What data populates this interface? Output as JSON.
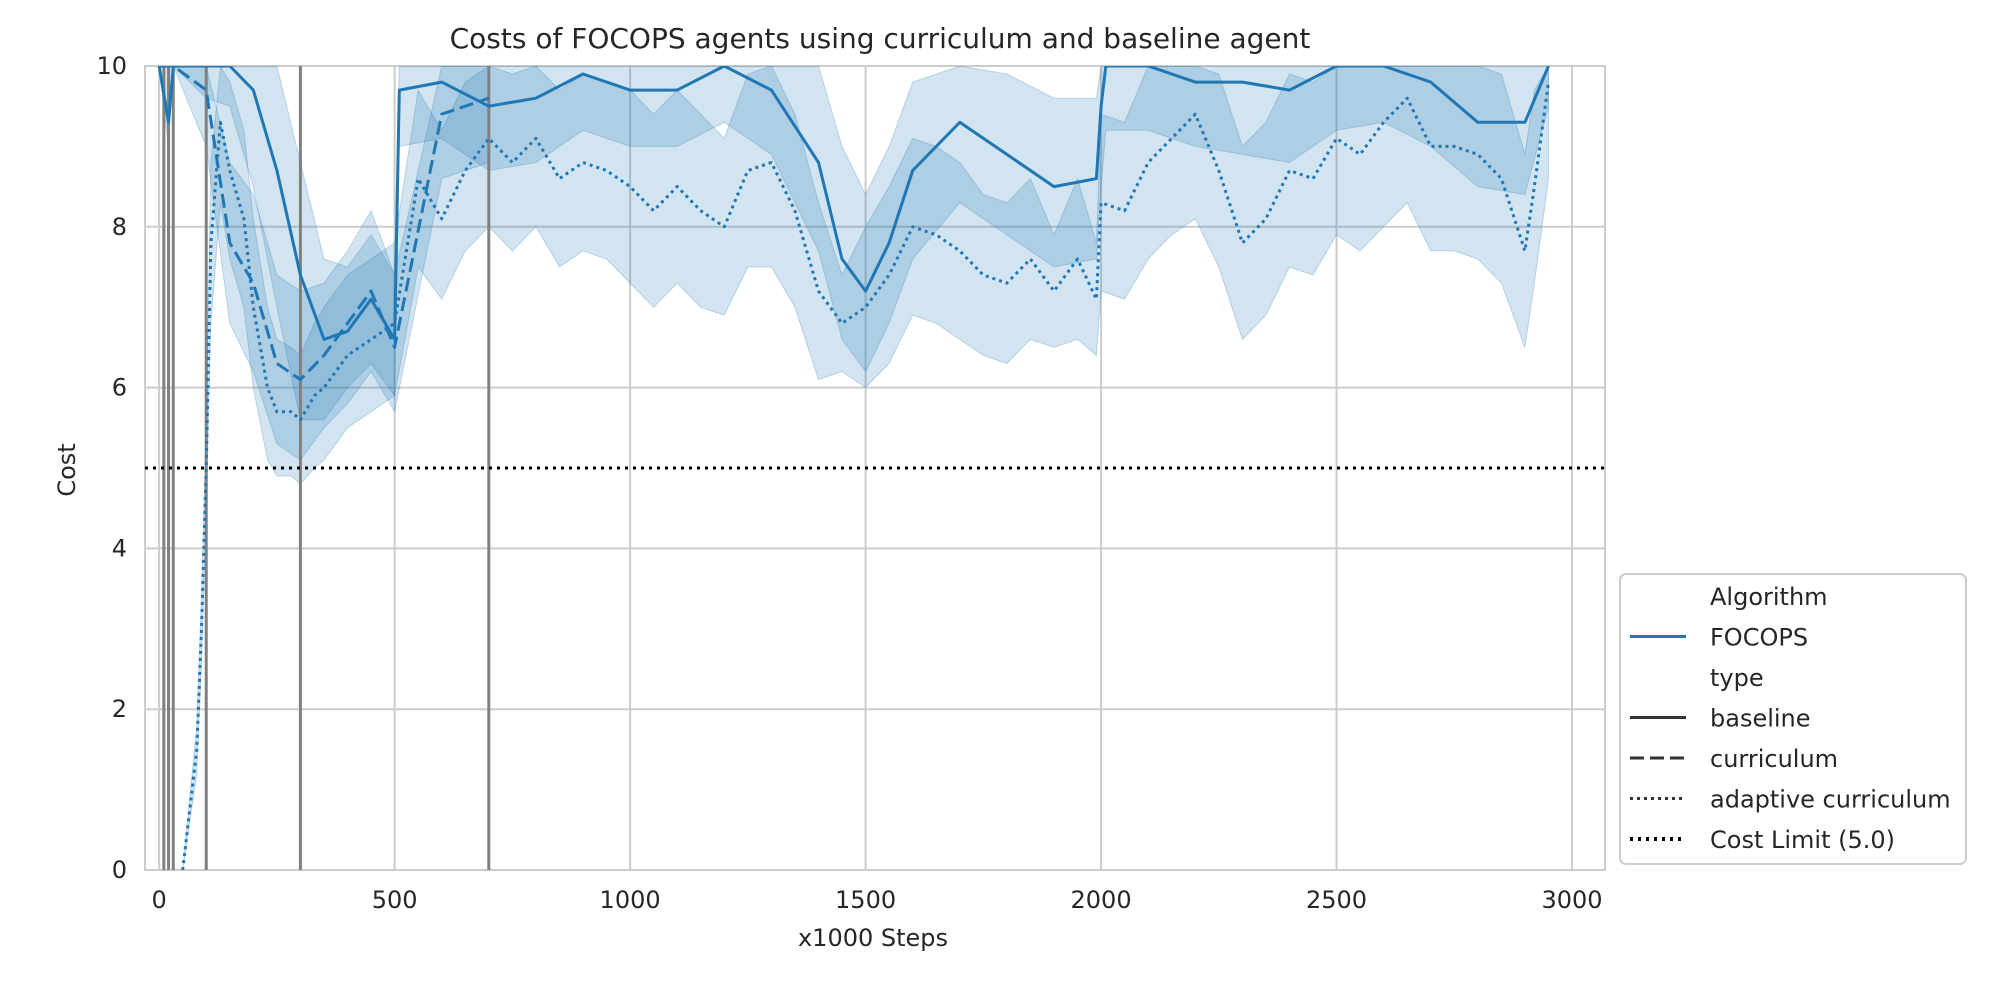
{
  "chart_data": {
    "type": "line",
    "title": "Costs of FOCOPS agents using curriculum and baseline agent",
    "xlabel": "x1000 Steps",
    "ylabel": "Cost",
    "xlim": [
      -30,
      3070
    ],
    "ylim": [
      0,
      10
    ],
    "xticks": [
      0,
      500,
      1000,
      1500,
      2000,
      2500,
      3000
    ],
    "yticks": [
      0,
      2,
      4,
      6,
      8,
      10
    ],
    "grid": true,
    "legend_position": "lower-right outside",
    "colors": {
      "series": "#1f77b4",
      "band": "#1f77b4",
      "vlines": "#808080",
      "limit": "#000000",
      "grid": "#cccccc"
    },
    "vlines": [
      10,
      20,
      30,
      100,
      300,
      700
    ],
    "cost_limit": 5.0,
    "legend": [
      {
        "label": "Algorithm",
        "kind": "header"
      },
      {
        "label": "FOCOPS",
        "kind": "line",
        "style": "solid",
        "color": "#1f77b4"
      },
      {
        "label": "type",
        "kind": "header"
      },
      {
        "label": "baseline",
        "kind": "line",
        "style": "solid",
        "color": "#333333"
      },
      {
        "label": "curriculum",
        "kind": "line",
        "style": "dashed",
        "color": "#333333"
      },
      {
        "label": "adaptive curriculum",
        "kind": "line",
        "style": "dotted",
        "color": "#333333"
      },
      {
        "label": "Cost Limit (5.0)",
        "kind": "line",
        "style": "dotted-bold",
        "color": "#000000"
      }
    ],
    "series": [
      {
        "name": "baseline",
        "style": "solid",
        "x": [
          0,
          20,
          30,
          100,
          150,
          200,
          250,
          300,
          350,
          400,
          450,
          500,
          510,
          600,
          700,
          800,
          900,
          1000,
          1100,
          1200,
          1300,
          1400,
          1450,
          1500,
          1550,
          1600,
          1700,
          1800,
          1900,
          1990,
          2000,
          2010,
          2100,
          2200,
          2300,
          2400,
          2500,
          2600,
          2700,
          2800,
          2900,
          2950
        ],
        "y": [
          10,
          9.3,
          10,
          10,
          10,
          9.7,
          8.7,
          7.4,
          6.6,
          6.7,
          7.1,
          6.6,
          9.7,
          9.8,
          9.5,
          9.6,
          9.9,
          9.7,
          9.7,
          10,
          9.7,
          8.8,
          7.6,
          7.2,
          7.8,
          8.7,
          9.3,
          8.9,
          8.5,
          8.6,
          9.5,
          10,
          10,
          9.8,
          9.8,
          9.7,
          10,
          10,
          9.8,
          9.3,
          9.3,
          10
        ],
        "lower": [
          10,
          9,
          10,
          9.6,
          9.5,
          8.5,
          7,
          5.6,
          5.6,
          6,
          6.3,
          5.9,
          9,
          9.1,
          8.7,
          8.8,
          9.2,
          9,
          9,
          9.3,
          8.9,
          7.7,
          6.6,
          6.2,
          6.8,
          7.6,
          8.3,
          7.9,
          7.5,
          7.6,
          8.5,
          9.2,
          9.2,
          9,
          8.9,
          8.8,
          9.2,
          9.3,
          9,
          8.5,
          8.4,
          9.5
        ],
        "upper": [
          10,
          10,
          10,
          10,
          10,
          10,
          10,
          8.8,
          7.6,
          7.5,
          7.9,
          7.4,
          10,
          10,
          10,
          10,
          10,
          10,
          10,
          10,
          10,
          10,
          9,
          8.4,
          9,
          9.8,
          10,
          9.9,
          9.6,
          9.6,
          10,
          10,
          10,
          10,
          10,
          10,
          10,
          10,
          10,
          10,
          10,
          10
        ]
      },
      {
        "name": "curriculum",
        "style": "dashed",
        "x": [
          0,
          10,
          20,
          30,
          100,
          150,
          200,
          250,
          300,
          350,
          400,
          450,
          500,
          600,
          700
        ],
        "y": [
          10,
          10,
          10,
          10,
          9.7,
          7.8,
          7.3,
          6.3,
          6.1,
          6.4,
          6.8,
          7.2,
          6.5,
          9.4,
          9.6
        ],
        "lower": [
          10,
          10,
          10,
          10,
          9,
          6.8,
          6.2,
          5.3,
          5.1,
          5.5,
          5.8,
          6.2,
          5.7,
          8.6,
          8.8
        ],
        "upper": [
          10,
          10,
          10,
          10,
          10,
          8.8,
          8.4,
          7.4,
          7.2,
          7.3,
          7.7,
          8.2,
          7.4,
          10,
          10
        ]
      },
      {
        "name": "adaptive curriculum",
        "style": "dotted",
        "x": [
          50,
          60,
          70,
          80,
          90,
          100,
          110,
          130,
          150,
          180,
          200,
          230,
          250,
          280,
          300,
          330,
          350,
          400,
          450,
          500,
          550,
          600,
          650,
          700,
          750,
          800,
          850,
          900,
          950,
          1000,
          1050,
          1100,
          1150,
          1200,
          1250,
          1300,
          1350,
          1400,
          1450,
          1500,
          1550,
          1600,
          1650,
          1700,
          1750,
          1800,
          1850,
          1900,
          1950,
          1990,
          2000,
          2050,
          2100,
          2150,
          2200,
          2250,
          2300,
          2350,
          2400,
          2450,
          2500,
          2550,
          2600,
          2650,
          2700,
          2750,
          2800,
          2850,
          2900,
          2920,
          2950
        ],
        "y": [
          0,
          0.5,
          1,
          1.5,
          3,
          5,
          7.8,
          9.3,
          8.7,
          8.1,
          7,
          6,
          5.7,
          5.7,
          5.6,
          5.9,
          6,
          6.4,
          6.6,
          6.8,
          8.6,
          8.1,
          8.7,
          9.1,
          8.8,
          9.1,
          8.6,
          8.8,
          8.7,
          8.5,
          8.2,
          8.5,
          8.2,
          8.0,
          8.7,
          8.8,
          8.2,
          7.2,
          6.8,
          7.0,
          7.4,
          8.0,
          7.9,
          7.7,
          7.4,
          7.3,
          7.6,
          7.2,
          7.6,
          7.1,
          8.3,
          8.2,
          8.8,
          9.1,
          9.4,
          8.7,
          7.8,
          8.1,
          8.7,
          8.6,
          9.1,
          8.9,
          9.3,
          9.6,
          9.0,
          9.0,
          8.9,
          8.6,
          7.7,
          8.5,
          9.8
        ],
        "lower": [
          0,
          0.4,
          0.8,
          1.2,
          2.6,
          4.5,
          6.8,
          8.3,
          7.6,
          7.0,
          6.0,
          5.1,
          4.9,
          4.9,
          4.8,
          5.0,
          5.1,
          5.5,
          5.7,
          5.9,
          7.5,
          7.1,
          7.7,
          8.0,
          7.7,
          8.0,
          7.5,
          7.7,
          7.6,
          7.3,
          7.0,
          7.3,
          7.0,
          6.9,
          7.5,
          7.5,
          7.0,
          6.1,
          6.2,
          6.0,
          6.3,
          6.9,
          6.8,
          6.6,
          6.4,
          6.3,
          6.6,
          6.5,
          6.6,
          6.4,
          7.2,
          7.1,
          7.6,
          7.9,
          8.1,
          7.5,
          6.6,
          6.9,
          7.5,
          7.4,
          7.9,
          7.7,
          8.0,
          8.3,
          7.7,
          7.7,
          7.6,
          7.3,
          6.5,
          7.3,
          8.6
        ],
        "upper": [
          0,
          0.6,
          1.2,
          1.8,
          3.4,
          5.5,
          8.8,
          10,
          9.8,
          9.2,
          8.1,
          7.0,
          6.6,
          6.5,
          6.4,
          6.8,
          7.0,
          7.4,
          7.6,
          7.8,
          9.7,
          9.2,
          9.8,
          10,
          9.9,
          10,
          9.7,
          9.9,
          9.8,
          9.7,
          9.4,
          9.7,
          9.4,
          9.1,
          9.9,
          10,
          9.4,
          8.3,
          7.4,
          8.0,
          8.5,
          9.1,
          9.0,
          8.8,
          8.4,
          8.3,
          8.6,
          7.9,
          8.6,
          7.8,
          9.4,
          9.3,
          10,
          10,
          10,
          9.9,
          9.0,
          9.3,
          9.9,
          9.8,
          10,
          10,
          10,
          10,
          10,
          10,
          10,
          9.9,
          8.9,
          9.7,
          10
        ]
      },
      {
        "name": "Cost Limit (5.0)",
        "style": "dotted-bold",
        "x": [
          -30,
          3070
        ],
        "y": [
          5.0,
          5.0
        ]
      }
    ]
  }
}
